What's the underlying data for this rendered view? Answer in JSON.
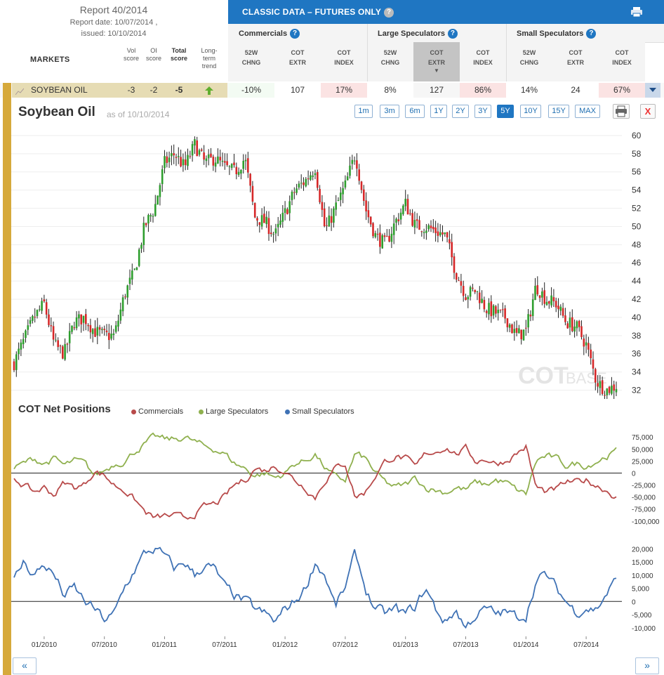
{
  "report": {
    "title": "Report 40/2014",
    "date_line": "Report date: 10/07/2014 ,",
    "issued_line": "issued: 10/10/2014"
  },
  "header": {
    "markets": "MARKETS",
    "vol1": "Vol",
    "vol2": "score",
    "oi1": "OI",
    "oi2": "score",
    "total1": "Total",
    "total2": "score",
    "lt1": "Long-",
    "lt2": "term",
    "lt3": "trend",
    "classic_title": "CLASSIC DATA – FUTURES ONLY",
    "help_mark": "?"
  },
  "groups": [
    "Commercials",
    "Large Speculators",
    "Small Speculators"
  ],
  "columns": [
    {
      "l1": "52W",
      "l2": "CHNG"
    },
    {
      "l1": "COT",
      "l2": "EXTR"
    },
    {
      "l1": "COT",
      "l2": "INDEX"
    },
    {
      "l1": "52W",
      "l2": "CHNG"
    },
    {
      "l1": "COT",
      "l2": "EXTR"
    },
    {
      "l1": "COT",
      "l2": "INDEX"
    },
    {
      "l1": "52W",
      "l2": "CHNG"
    },
    {
      "l1": "COT",
      "l2": "EXTR"
    },
    {
      "l1": "COT",
      "l2": "INDEX"
    }
  ],
  "row": {
    "market": "SOYBEAN OIL",
    "vol": "-3",
    "oi": "-2",
    "total": "-5",
    "cells": [
      "-10%",
      "107",
      "17%",
      "8%",
      "127",
      "86%",
      "14%",
      "24",
      "67%"
    ]
  },
  "chart": {
    "title": "Soybean Oil",
    "asof": "as of 10/10/2014",
    "ranges": [
      "1m",
      "3m",
      "6m",
      "1Y",
      "2Y",
      "3Y",
      "5Y",
      "10Y",
      "15Y",
      "MAX"
    ],
    "active_range": "5Y",
    "close_label": "X",
    "watermark_a": "COT",
    "watermark_b": "BASE"
  },
  "cot": {
    "title": "COT Net Positions",
    "legend": [
      "Commercials",
      "Large Speculators",
      "Small Speculators"
    ]
  },
  "nav": {
    "prev": "«",
    "next": "»"
  },
  "colors": {
    "accent": "#1f76c2",
    "up": "#2e9e2e",
    "down": "#d62728",
    "commercials": "#b84a4a",
    "large": "#8fb04e",
    "small": "#3f72b5"
  },
  "chart_data": [
    {
      "type": "candlestick",
      "title": "Soybean Oil",
      "x_ticks": [
        "01/2010",
        "07/2010",
        "01/2011",
        "07/2011",
        "01/2012",
        "07/2012",
        "01/2013",
        "07/2013",
        "01/2014",
        "07/2014"
      ],
      "y_ticks": [
        32,
        34,
        36,
        38,
        40,
        42,
        44,
        46,
        48,
        50,
        52,
        54,
        56,
        58,
        60
      ],
      "ylim": [
        31.5,
        61
      ],
      "x_range": [
        "2009-10",
        "2014-10"
      ],
      "close_path": [
        [
          "2009-10",
          35
        ],
        [
          "2009-12",
          40
        ],
        [
          "2010-01",
          41.5
        ],
        [
          "2010-02",
          37
        ],
        [
          "2010-03",
          36
        ],
        [
          "2010-04",
          39.5
        ],
        [
          "2010-05",
          40
        ],
        [
          "2010-06",
          38.5
        ],
        [
          "2010-07",
          38
        ],
        [
          "2010-08",
          38
        ],
        [
          "2010-09",
          42.5
        ],
        [
          "2010-10",
          45
        ],
        [
          "2010-11",
          50
        ],
        [
          "2010-12",
          52
        ],
        [
          "2011-01",
          57
        ],
        [
          "2011-02",
          58
        ],
        [
          "2011-03",
          56.5
        ],
        [
          "2011-04",
          59
        ],
        [
          "2011-05",
          57
        ],
        [
          "2011-06",
          57.5
        ],
        [
          "2011-07",
          56.5
        ],
        [
          "2011-08",
          56
        ],
        [
          "2011-09",
          57.5
        ],
        [
          "2011-10",
          51
        ],
        [
          "2011-11",
          50.5
        ],
        [
          "2011-12",
          49
        ],
        [
          "2012-01",
          51.5
        ],
        [
          "2012-02",
          54
        ],
        [
          "2012-03",
          55
        ],
        [
          "2012-04",
          56.5
        ],
        [
          "2012-05",
          49.5
        ],
        [
          "2012-06",
          52
        ],
        [
          "2012-07",
          54.5
        ],
        [
          "2012-08",
          58
        ],
        [
          "2012-09",
          52
        ],
        [
          "2012-10",
          49
        ],
        [
          "2012-11",
          48
        ],
        [
          "2012-12",
          50.5
        ],
        [
          "2013-01",
          52.5
        ],
        [
          "2013-02",
          50
        ],
        [
          "2013-03",
          50
        ],
        [
          "2013-04",
          49.5
        ],
        [
          "2013-05",
          49
        ],
        [
          "2013-06",
          45
        ],
        [
          "2013-07",
          42.5
        ],
        [
          "2013-08",
          43
        ],
        [
          "2013-09",
          41
        ],
        [
          "2013-10",
          40.5
        ],
        [
          "2013-11",
          40
        ],
        [
          "2013-12",
          38
        ],
        [
          "2014-01",
          38.5
        ],
        [
          "2014-02",
          43.5
        ],
        [
          "2014-03",
          42
        ],
        [
          "2014-04",
          41.5
        ],
        [
          "2014-05",
          39.5
        ],
        [
          "2014-06",
          39
        ],
        [
          "2014-07",
          37
        ],
        [
          "2014-08",
          33
        ],
        [
          "2014-09",
          32
        ],
        [
          "2014-10",
          32.5
        ]
      ]
    },
    {
      "type": "line",
      "title": "COT Net Positions",
      "series_names": [
        "Commercials",
        "Large Speculators"
      ],
      "y_ticks": [
        75000,
        50000,
        25000,
        0,
        -25000,
        -50000,
        -75000,
        -100000
      ],
      "y_tick_labels": [
        "75,000",
        "50,000",
        "25,000",
        "0",
        "-25,000",
        "-50,000",
        "-75,000",
        "-100,000"
      ],
      "ylim": [
        -115000,
        90000
      ],
      "large_speculators": [
        [
          "2009-10",
          10000
        ],
        [
          "2009-12",
          30000
        ],
        [
          "2010-01",
          20000
        ],
        [
          "2010-02",
          30000
        ],
        [
          "2010-03",
          15000
        ],
        [
          "2010-04",
          25000
        ],
        [
          "2010-05",
          20000
        ],
        [
          "2010-06",
          -5000
        ],
        [
          "2010-07",
          5000
        ],
        [
          "2010-08",
          20000
        ],
        [
          "2010-09",
          25000
        ],
        [
          "2010-10",
          45000
        ],
        [
          "2010-11",
          60000
        ],
        [
          "2010-12",
          75000
        ],
        [
          "2011-01",
          70000
        ],
        [
          "2011-02",
          70000
        ],
        [
          "2011-03",
          75000
        ],
        [
          "2011-04",
          65000
        ],
        [
          "2011-05",
          55000
        ],
        [
          "2011-06",
          50000
        ],
        [
          "2011-07",
          40000
        ],
        [
          "2011-08",
          20000
        ],
        [
          "2011-09",
          10000
        ],
        [
          "2011-10",
          -5000
        ],
        [
          "2011-11",
          0
        ],
        [
          "2011-12",
          -10000
        ],
        [
          "2012-01",
          0
        ],
        [
          "2012-02",
          20000
        ],
        [
          "2012-03",
          25000
        ],
        [
          "2012-04",
          40000
        ],
        [
          "2012-05",
          10000
        ],
        [
          "2012-06",
          -10000
        ],
        [
          "2012-07",
          -15000
        ],
        [
          "2012-08",
          40000
        ],
        [
          "2012-09",
          30000
        ],
        [
          "2012-10",
          0
        ],
        [
          "2012-11",
          -20000
        ],
        [
          "2012-12",
          -30000
        ],
        [
          "2013-01",
          -25000
        ],
        [
          "2013-02",
          -10000
        ],
        [
          "2013-03",
          -30000
        ],
        [
          "2013-04",
          -35000
        ],
        [
          "2013-05",
          -40000
        ],
        [
          "2013-06",
          -30000
        ],
        [
          "2013-07",
          -35000
        ],
        [
          "2013-08",
          -20000
        ],
        [
          "2013-09",
          -25000
        ],
        [
          "2013-10",
          -15000
        ],
        [
          "2013-11",
          -20000
        ],
        [
          "2013-12",
          -35000
        ],
        [
          "2014-01",
          -45000
        ],
        [
          "2014-02",
          25000
        ],
        [
          "2014-03",
          35000
        ],
        [
          "2014-04",
          30000
        ],
        [
          "2014-05",
          15000
        ],
        [
          "2014-06",
          20000
        ],
        [
          "2014-07",
          15000
        ],
        [
          "2014-08",
          25000
        ],
        [
          "2014-09",
          35000
        ],
        [
          "2014-10",
          45000
        ]
      ],
      "commercials": [
        [
          "2009-10",
          -10000
        ],
        [
          "2009-12",
          -40000
        ],
        [
          "2010-01",
          -30000
        ],
        [
          "2010-02",
          -45000
        ],
        [
          "2010-03",
          -20000
        ],
        [
          "2010-04",
          -30000
        ],
        [
          "2010-05",
          -25000
        ],
        [
          "2010-06",
          5000
        ],
        [
          "2010-07",
          -5000
        ],
        [
          "2010-08",
          -25000
        ],
        [
          "2010-09",
          -35000
        ],
        [
          "2010-10",
          -55000
        ],
        [
          "2010-11",
          -80000
        ],
        [
          "2010-12",
          -95000
        ],
        [
          "2011-01",
          -90000
        ],
        [
          "2011-02",
          -90000
        ],
        [
          "2011-03",
          -95000
        ],
        [
          "2011-04",
          -85000
        ],
        [
          "2011-05",
          -70000
        ],
        [
          "2011-06",
          -65000
        ],
        [
          "2011-07",
          -50000
        ],
        [
          "2011-08",
          -25000
        ],
        [
          "2011-09",
          -15000
        ],
        [
          "2011-10",
          10000
        ],
        [
          "2011-11",
          5000
        ],
        [
          "2011-12",
          15000
        ],
        [
          "2012-01",
          5000
        ],
        [
          "2012-02",
          -15000
        ],
        [
          "2012-03",
          -30000
        ],
        [
          "2012-04",
          -50000
        ],
        [
          "2012-05",
          -15000
        ],
        [
          "2012-06",
          10000
        ],
        [
          "2012-07",
          20000
        ],
        [
          "2012-08",
          -50000
        ],
        [
          "2012-09",
          -40000
        ],
        [
          "2012-10",
          -5000
        ],
        [
          "2012-11",
          25000
        ],
        [
          "2012-12",
          35000
        ],
        [
          "2013-01",
          30000
        ],
        [
          "2013-02",
          10000
        ],
        [
          "2013-03",
          40000
        ],
        [
          "2013-04",
          45000
        ],
        [
          "2013-05",
          55000
        ],
        [
          "2013-06",
          40000
        ],
        [
          "2013-07",
          50000
        ],
        [
          "2013-08",
          25000
        ],
        [
          "2013-09",
          30000
        ],
        [
          "2013-10",
          20000
        ],
        [
          "2013-11",
          25000
        ],
        [
          "2013-12",
          40000
        ],
        [
          "2014-01",
          55000
        ],
        [
          "2014-02",
          -30000
        ],
        [
          "2014-03",
          -40000
        ],
        [
          "2014-04",
          -35000
        ],
        [
          "2014-05",
          -20000
        ],
        [
          "2014-06",
          -20000
        ],
        [
          "2014-07",
          -15000
        ],
        [
          "2014-08",
          -25000
        ],
        [
          "2014-09",
          -35000
        ],
        [
          "2014-10",
          -50000
        ]
      ]
    },
    {
      "type": "line",
      "series_names": [
        "Small Speculators"
      ],
      "y_ticks": [
        20000,
        15000,
        10000,
        5000,
        0,
        -5000,
        -10000
      ],
      "y_tick_labels": [
        "20,000",
        "15,000",
        "10,000",
        "5,000",
        "0",
        "-5,000",
        "-10,000"
      ],
      "ylim": [
        -13000,
        23000
      ],
      "small_speculators": [
        [
          "2009-10",
          8000
        ],
        [
          "2009-11",
          15000
        ],
        [
          "2009-12",
          10000
        ],
        [
          "2010-01",
          14000
        ],
        [
          "2010-02",
          10000
        ],
        [
          "2010-03",
          2000
        ],
        [
          "2010-04",
          5000
        ],
        [
          "2010-05",
          0
        ],
        [
          "2010-06",
          -3000
        ],
        [
          "2010-07",
          -7000
        ],
        [
          "2010-08",
          -5000
        ],
        [
          "2010-09",
          5000
        ],
        [
          "2010-10",
          12000
        ],
        [
          "2010-11",
          18000
        ],
        [
          "2010-12",
          20000
        ],
        [
          "2011-01",
          17000
        ],
        [
          "2011-02",
          12000
        ],
        [
          "2011-03",
          15000
        ],
        [
          "2011-04",
          10000
        ],
        [
          "2011-05",
          14000
        ],
        [
          "2011-06",
          12000
        ],
        [
          "2011-07",
          5000
        ],
        [
          "2011-08",
          2000
        ],
        [
          "2011-09",
          0
        ],
        [
          "2011-10",
          -3000
        ],
        [
          "2011-11",
          -5000
        ],
        [
          "2011-12",
          -8000
        ],
        [
          "2012-01",
          -3000
        ],
        [
          "2012-02",
          0
        ],
        [
          "2012-03",
          5000
        ],
        [
          "2012-04",
          15000
        ],
        [
          "2012-05",
          10000
        ],
        [
          "2012-06",
          -2000
        ],
        [
          "2012-07",
          5000
        ],
        [
          "2012-08",
          18000
        ],
        [
          "2012-09",
          5000
        ],
        [
          "2012-10",
          -3000
        ],
        [
          "2012-11",
          -5000
        ],
        [
          "2012-12",
          -3000
        ],
        [
          "2013-01",
          -5000
        ],
        [
          "2013-02",
          -2000
        ],
        [
          "2013-03",
          5000
        ],
        [
          "2013-04",
          -3000
        ],
        [
          "2013-05",
          -8000
        ],
        [
          "2013-06",
          -3000
        ],
        [
          "2013-07",
          -10000
        ],
        [
          "2013-08",
          -5000
        ],
        [
          "2013-09",
          -3000
        ],
        [
          "2013-10",
          -5000
        ],
        [
          "2013-11",
          -4000
        ],
        [
          "2013-12",
          -6000
        ],
        [
          "2014-01",
          -5000
        ],
        [
          "2014-02",
          8000
        ],
        [
          "2014-03",
          10000
        ],
        [
          "2014-04",
          5000
        ],
        [
          "2014-05",
          0
        ],
        [
          "2014-06",
          -4000
        ],
        [
          "2014-07",
          -2000
        ],
        [
          "2014-08",
          -3000
        ],
        [
          "2014-09",
          3000
        ],
        [
          "2014-10",
          8000
        ]
      ]
    }
  ]
}
